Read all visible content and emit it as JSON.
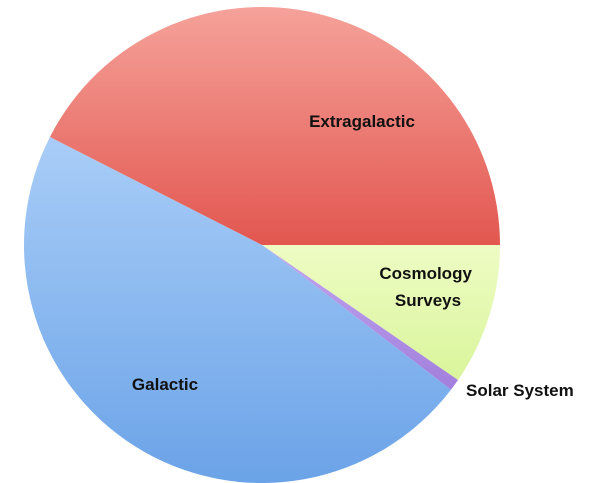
{
  "chart_data": {
    "type": "pie",
    "title": "",
    "start": "3 o'clock, clockwise",
    "slices": [
      {
        "label": "Cosmology Surveys",
        "value": 9.6,
        "color": "#d9f59b",
        "color_light": "#eefcc4"
      },
      {
        "label": "Solar System",
        "value": 0.8,
        "color": "#a27fdc",
        "color_light": "#c0a6ef"
      },
      {
        "label": "Galactic",
        "value": 47.1,
        "color": "#6ba3e8",
        "color_light": "#a9cdf7"
      },
      {
        "label": "Extragalactic",
        "value": 42.5,
        "color": "#e25750",
        "color_light": "#f5a29a"
      }
    ]
  }
}
